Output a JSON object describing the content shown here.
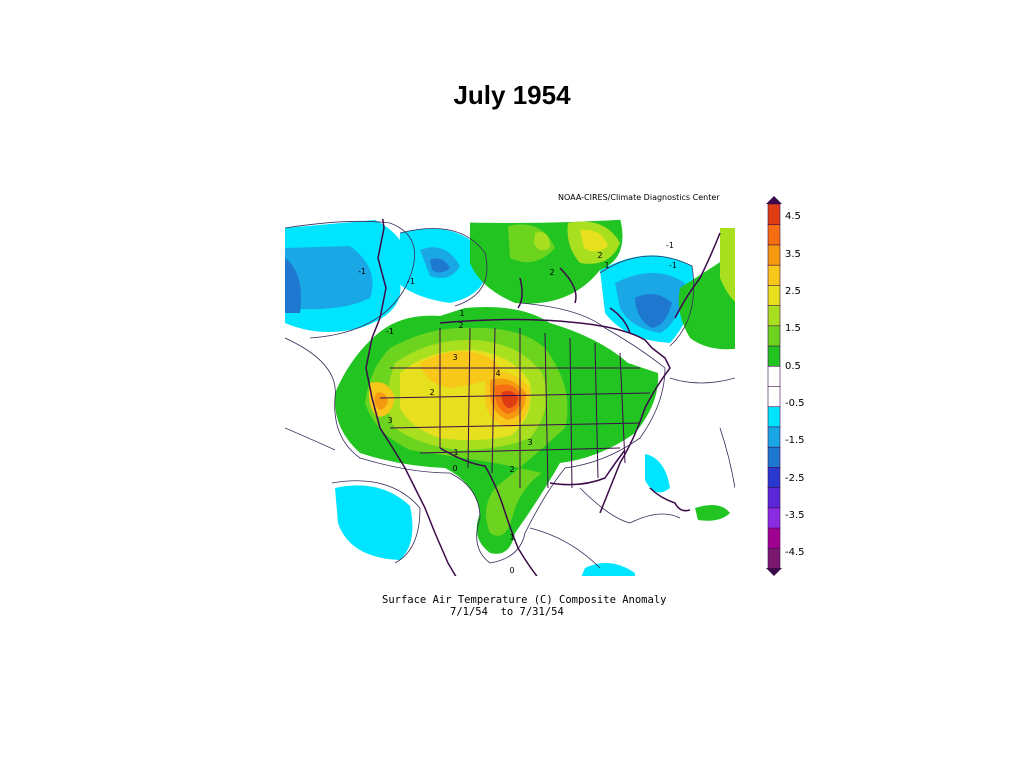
{
  "slide": {
    "title": "July 1954"
  },
  "map": {
    "credit": "NOAA-CIRES/Climate Diagnostics Center",
    "caption_line1": "Surface Air Temperature (C) Composite Anomaly",
    "caption_line2": "7/1/54  to 7/31/54",
    "contour_labels": [
      "-1",
      "-1",
      "-1",
      "-1",
      "1",
      "2",
      "3",
      "4",
      "2",
      "3",
      "3",
      "1",
      "0",
      "2",
      "1",
      "0",
      "2",
      "2",
      "1",
      "-1",
      "1"
    ],
    "colorbar": {
      "labels": [
        "4.5",
        "3.5",
        "2.5",
        "1.5",
        "0.5",
        "-0.5",
        "-1.5",
        "-2.5",
        "-3.5",
        "-4.5"
      ],
      "colors": [
        "#7a1870",
        "#a00090",
        "#8a2be2",
        "#5a28d8",
        "#2838d0",
        "#1f78d0",
        "#1aa7e6",
        "#00e5ff",
        "#ffffff",
        "#ffffff",
        "#22c422",
        "#6cd41e",
        "#a8e020",
        "#e6e01e",
        "#f7c81a",
        "#f59a10",
        "#f56e12",
        "#e03c14"
      ]
    }
  }
}
